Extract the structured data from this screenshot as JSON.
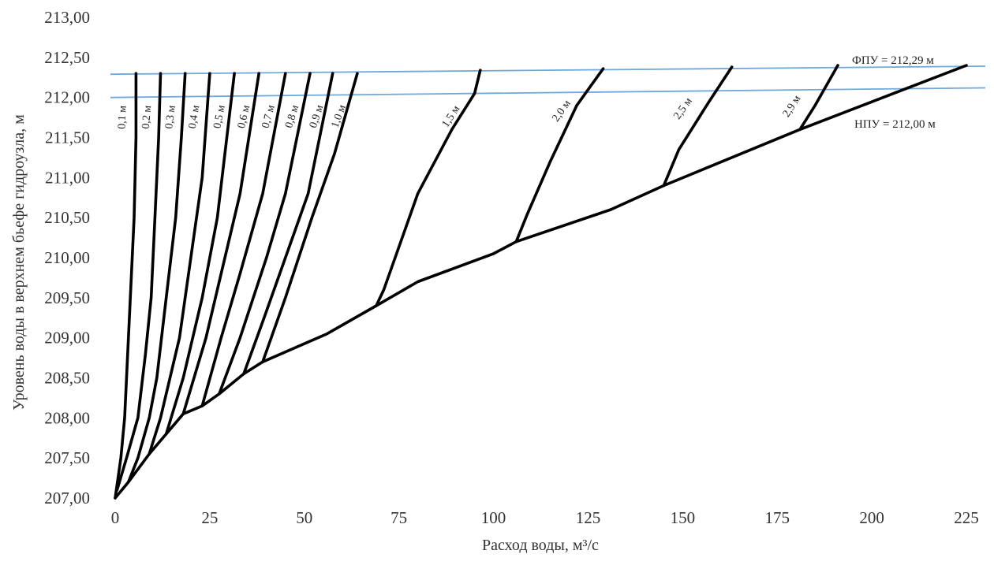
{
  "chart_data": {
    "type": "line",
    "xlabel": "Расход воды, м³/с",
    "ylabel": "Уровень воды в верхнем бьефе гидроузла, м",
    "xlim": [
      0,
      225
    ],
    "ylim": [
      207,
      213
    ],
    "x_ticks": [
      "0",
      "25",
      "50",
      "75",
      "100",
      "125",
      "150",
      "175",
      "200",
      "225"
    ],
    "y_ticks": [
      "207,00",
      "207,50",
      "208,00",
      "208,50",
      "209,00",
      "209,50",
      "210,00",
      "210,50",
      "211,00",
      "211,50",
      "212,00",
      "212,50",
      "213,00"
    ],
    "grid": false,
    "legend": "none",
    "envelope": {
      "name": "",
      "points": [
        [
          0,
          207.0
        ],
        [
          3.5,
          207.2
        ],
        [
          9,
          207.55
        ],
        [
          18,
          208.05
        ],
        [
          23,
          208.15
        ],
        [
          27.5,
          208.3
        ],
        [
          34,
          208.55
        ],
        [
          39,
          208.7
        ],
        [
          56,
          209.05
        ],
        [
          69,
          209.4
        ],
        [
          80,
          209.7
        ],
        [
          100,
          210.05
        ],
        [
          106,
          210.2
        ],
        [
          131,
          210.6
        ],
        [
          145,
          210.9
        ],
        [
          181,
          211.6
        ],
        [
          225,
          212.4
        ]
      ]
    },
    "gate_curves": [
      {
        "label": "0,1 м",
        "points": [
          [
            0,
            207.0
          ],
          [
            1.5,
            207.5
          ],
          [
            2.5,
            208.0
          ],
          [
            3,
            208.5
          ],
          [
            4,
            209.5
          ],
          [
            5,
            210.5
          ],
          [
            5.5,
            211.5
          ],
          [
            5.5,
            212.3
          ]
        ]
      },
      {
        "label": "0,2 м",
        "points": [
          [
            0.5,
            207.1
          ],
          [
            3,
            207.5
          ],
          [
            6,
            208.0
          ],
          [
            8,
            208.8
          ],
          [
            9.5,
            209.5
          ],
          [
            10.5,
            210.5
          ],
          [
            11.5,
            211.5
          ],
          [
            12,
            212.3
          ]
        ]
      },
      {
        "label": "0,3 м",
        "points": [
          [
            3.5,
            207.2
          ],
          [
            6,
            207.5
          ],
          [
            9,
            208.0
          ],
          [
            11,
            208.5
          ],
          [
            13.5,
            209.5
          ],
          [
            16,
            210.5
          ],
          [
            17.5,
            211.5
          ],
          [
            18.5,
            212.3
          ]
        ]
      },
      {
        "label": "0,4 м",
        "points": [
          [
            9,
            207.55
          ],
          [
            12,
            208.0
          ],
          [
            17,
            209.0
          ],
          [
            20,
            210.0
          ],
          [
            23,
            211.0
          ],
          [
            25,
            212.3
          ]
        ]
      },
      {
        "label": "0,5 м",
        "points": [
          [
            13.5,
            207.8
          ],
          [
            18,
            208.5
          ],
          [
            23,
            209.5
          ],
          [
            27,
            210.5
          ],
          [
            31.5,
            212.3
          ]
        ]
      },
      {
        "label": "0,6 м",
        "points": [
          [
            18,
            208.05
          ],
          [
            24,
            209.0
          ],
          [
            28,
            209.8
          ],
          [
            33,
            210.8
          ],
          [
            38,
            212.3
          ]
        ]
      },
      {
        "label": "0,7 м",
        "points": [
          [
            23,
            208.15
          ],
          [
            28,
            209.0
          ],
          [
            33,
            209.8
          ],
          [
            39,
            210.8
          ],
          [
            45,
            212.3
          ]
        ]
      },
      {
        "label": "0,8 м",
        "points": [
          [
            27.5,
            208.3
          ],
          [
            33,
            209.0
          ],
          [
            40,
            210.0
          ],
          [
            45,
            210.8
          ],
          [
            51.5,
            212.3
          ]
        ]
      },
      {
        "label": "0,9 м",
        "points": [
          [
            34,
            208.55
          ],
          [
            39,
            209.2
          ],
          [
            45,
            210.0
          ],
          [
            51,
            210.8
          ],
          [
            57.5,
            212.3
          ]
        ]
      },
      {
        "label": "1,0 м",
        "points": [
          [
            39,
            208.7
          ],
          [
            45,
            209.5
          ],
          [
            52,
            210.5
          ],
          [
            58,
            211.3
          ],
          [
            64,
            212.3
          ]
        ]
      },
      {
        "label": "1,5 м",
        "points": [
          [
            69,
            209.4
          ],
          [
            71,
            209.6
          ],
          [
            80,
            210.8
          ],
          [
            89,
            211.6
          ],
          [
            95,
            212.05
          ],
          [
            96.5,
            212.34
          ]
        ]
      },
      {
        "label": "2,0 м",
        "points": [
          [
            106,
            210.2
          ],
          [
            109,
            210.55
          ],
          [
            115,
            211.2
          ],
          [
            122,
            211.9
          ],
          [
            129,
            212.36
          ]
        ]
      },
      {
        "label": "2,5 м",
        "points": [
          [
            145,
            210.9
          ],
          [
            149,
            211.35
          ],
          [
            157,
            211.95
          ],
          [
            163,
            212.38
          ]
        ]
      },
      {
        "label": "2,9 м",
        "points": [
          [
            181,
            211.6
          ],
          [
            185,
            211.9
          ],
          [
            191,
            212.4
          ]
        ]
      }
    ],
    "reference_lines": [
      {
        "label": "ФПУ = 212,29 м",
        "y_left": 212.29,
        "y_right": 212.39
      },
      {
        "label": "НПУ = 212,00 м",
        "y_left": 212.0,
        "y_right": 212.12
      }
    ]
  }
}
